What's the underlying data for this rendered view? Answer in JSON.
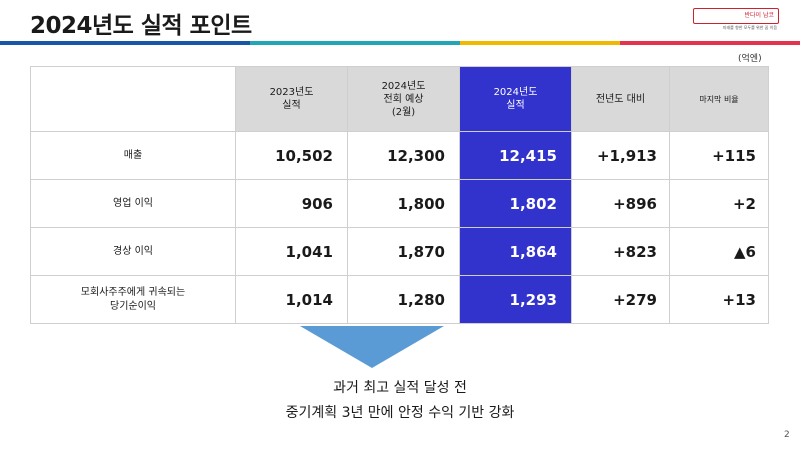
{
  "slide": {
    "title": "2024년도 실적 포인트",
    "page_number": "2"
  },
  "logo": {
    "name": "반다이 남코",
    "tagline": "미래를 향한 모두를 위한 꿈 이음"
  },
  "unit": "(억엔)",
  "table": {
    "headers": [
      {
        "lines": [
          "2023년도",
          "실적"
        ]
      },
      {
        "lines": [
          "2024년도",
          "전회 예상",
          "(2월)"
        ]
      },
      {
        "lines": [
          "2024년도",
          "실적"
        ]
      },
      {
        "lines": [
          "전년도 대비"
        ]
      },
      {
        "lines": [
          "마지막 비율"
        ]
      }
    ],
    "rows": [
      {
        "label_lines": [
          "매출"
        ],
        "values": [
          "10,502",
          "12,300",
          "12,415",
          "+1,913",
          "+115"
        ]
      },
      {
        "label_lines": [
          "영업 이익"
        ],
        "values": [
          "906",
          "1,800",
          "1,802",
          "+896",
          "+2"
        ]
      },
      {
        "label_lines": [
          "경상 이익"
        ],
        "values": [
          "1,041",
          "1,870",
          "1,864",
          "+823",
          "▲6"
        ]
      },
      {
        "label_lines": [
          "모회사주주에게 귀속되는",
          "당기순이익"
        ],
        "values": [
          "1,014",
          "1,280",
          "1,293",
          "+279",
          "+13"
        ]
      }
    ]
  },
  "summary": {
    "line1": "과거 최고 실적 달성 전",
    "line2": "중기계획 3년 만에 안정 수익 기반 강화"
  },
  "colors": {
    "highlight_column": "#3232cc",
    "header_gray": "#d9d9d9",
    "arrow": "#5b9bd5",
    "stripe": [
      "#1a56a8",
      "#22a6b3",
      "#f0b800",
      "#e2334f"
    ],
    "logo_red": "#d0202f"
  }
}
